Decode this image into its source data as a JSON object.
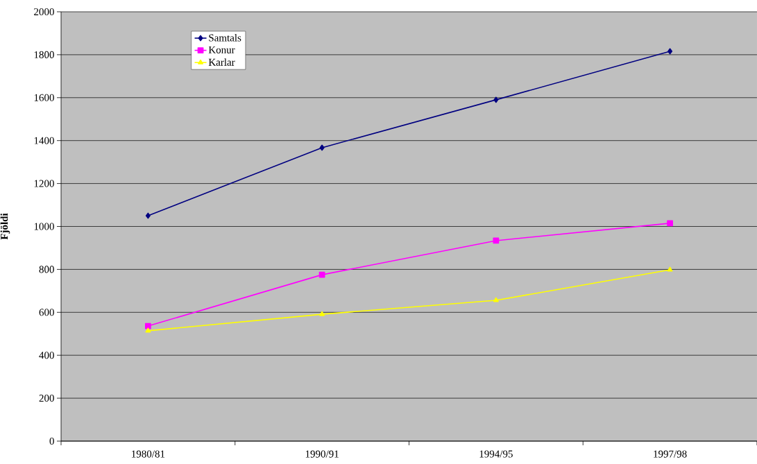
{
  "chart_data": {
    "type": "line",
    "ylabel": "Fjöldi",
    "categories": [
      "1980/81",
      "1990/91",
      "1994/95",
      "1997/98"
    ],
    "series": [
      {
        "name": "Samtals",
        "color": "#000080",
        "marker": "diamond",
        "values": [
          1050,
          1367,
          1590,
          1816
        ]
      },
      {
        "name": "Konur",
        "color": "#ff00ff",
        "marker": "square",
        "values": [
          536,
          775,
          934,
          1015
        ]
      },
      {
        "name": "Karlar",
        "color": "#ffff00",
        "marker": "triangle",
        "values": [
          514,
          591,
          656,
          798
        ]
      }
    ],
    "ylim": [
      0,
      2000
    ],
    "yticks": [
      0,
      200,
      400,
      600,
      800,
      1000,
      1200,
      1400,
      1600,
      1800,
      2000
    ],
    "grid": "y",
    "legend": "top left",
    "line_style": "solid"
  }
}
